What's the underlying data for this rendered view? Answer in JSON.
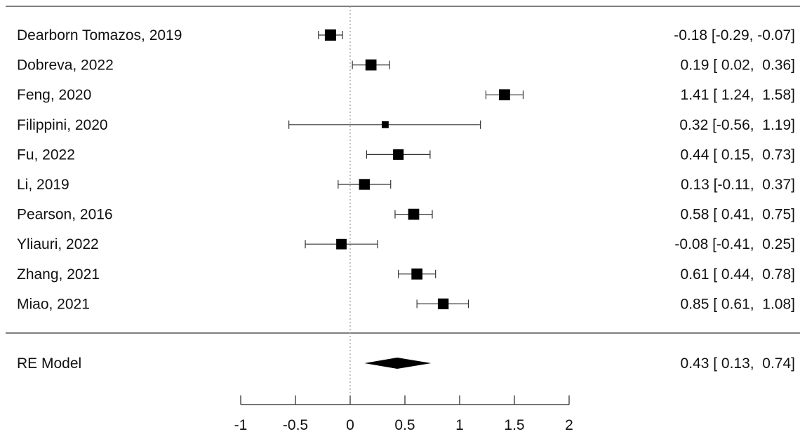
{
  "chart_data": {
    "type": "forest",
    "title": "",
    "xlabel": "",
    "ylabel": "",
    "xlim": [
      -1,
      2
    ],
    "xticks": [
      -1,
      -0.5,
      0,
      0.5,
      1,
      1.5,
      2
    ],
    "xtick_labels": [
      "-1",
      "-0.5",
      "0",
      "0.5",
      "1",
      "1.5",
      "2"
    ],
    "reference_line": 0,
    "studies": [
      {
        "label": "Dearborn Tomazos, 2019",
        "est": -0.18,
        "lo": -0.29,
        "hi": -0.07,
        "weight": 0.113,
        "ci_text": "-0.18 [-0.29, -0.07]"
      },
      {
        "label": "Dobreva, 2022",
        "est": 0.19,
        "lo": 0.02,
        "hi": 0.36,
        "weight": 0.109,
        "ci_text": "0.19 [ 0.02,  0.36]"
      },
      {
        "label": "Feng, 2020",
        "est": 1.41,
        "lo": 1.24,
        "hi": 1.58,
        "weight": 0.109,
        "ci_text": "1.41 [ 1.24,  1.58]"
      },
      {
        "label": "Filippini, 2020",
        "est": 0.32,
        "lo": -0.56,
        "hi": 1.19,
        "weight": 0.043,
        "ci_text": "0.32 [-0.56,  1.19]"
      },
      {
        "label": "Fu, 2022",
        "est": 0.44,
        "lo": 0.15,
        "hi": 0.73,
        "weight": 0.1,
        "ci_text": "0.44 [ 0.15,  0.73]"
      },
      {
        "label": "Li, 2019",
        "est": 0.13,
        "lo": -0.11,
        "hi": 0.37,
        "weight": 0.104,
        "ci_text": "0.13 [-0.11,  0.37]"
      },
      {
        "label": "Pearson, 2016",
        "est": 0.58,
        "lo": 0.41,
        "hi": 0.75,
        "weight": 0.109,
        "ci_text": "0.58 [ 0.41,  0.75]"
      },
      {
        "label": "Yliauri, 2022",
        "est": -0.08,
        "lo": -0.41,
        "hi": 0.25,
        "weight": 0.097,
        "ci_text": "-0.08 [-0.41,  0.25]"
      },
      {
        "label": "Zhang, 2021",
        "est": 0.61,
        "lo": 0.44,
        "hi": 0.78,
        "weight": 0.109,
        "ci_text": "0.61 [ 0.44,  0.78]"
      },
      {
        "label": "Miao, 2021",
        "est": 0.85,
        "lo": 0.61,
        "hi": 1.08,
        "weight": 0.104,
        "ci_text": "0.85 [ 0.61,  1.08]"
      }
    ],
    "summary": {
      "label": "RE Model",
      "est": 0.43,
      "lo": 0.13,
      "hi": 0.74,
      "ci_text": "0.43 [ 0.13,  0.74]"
    }
  }
}
